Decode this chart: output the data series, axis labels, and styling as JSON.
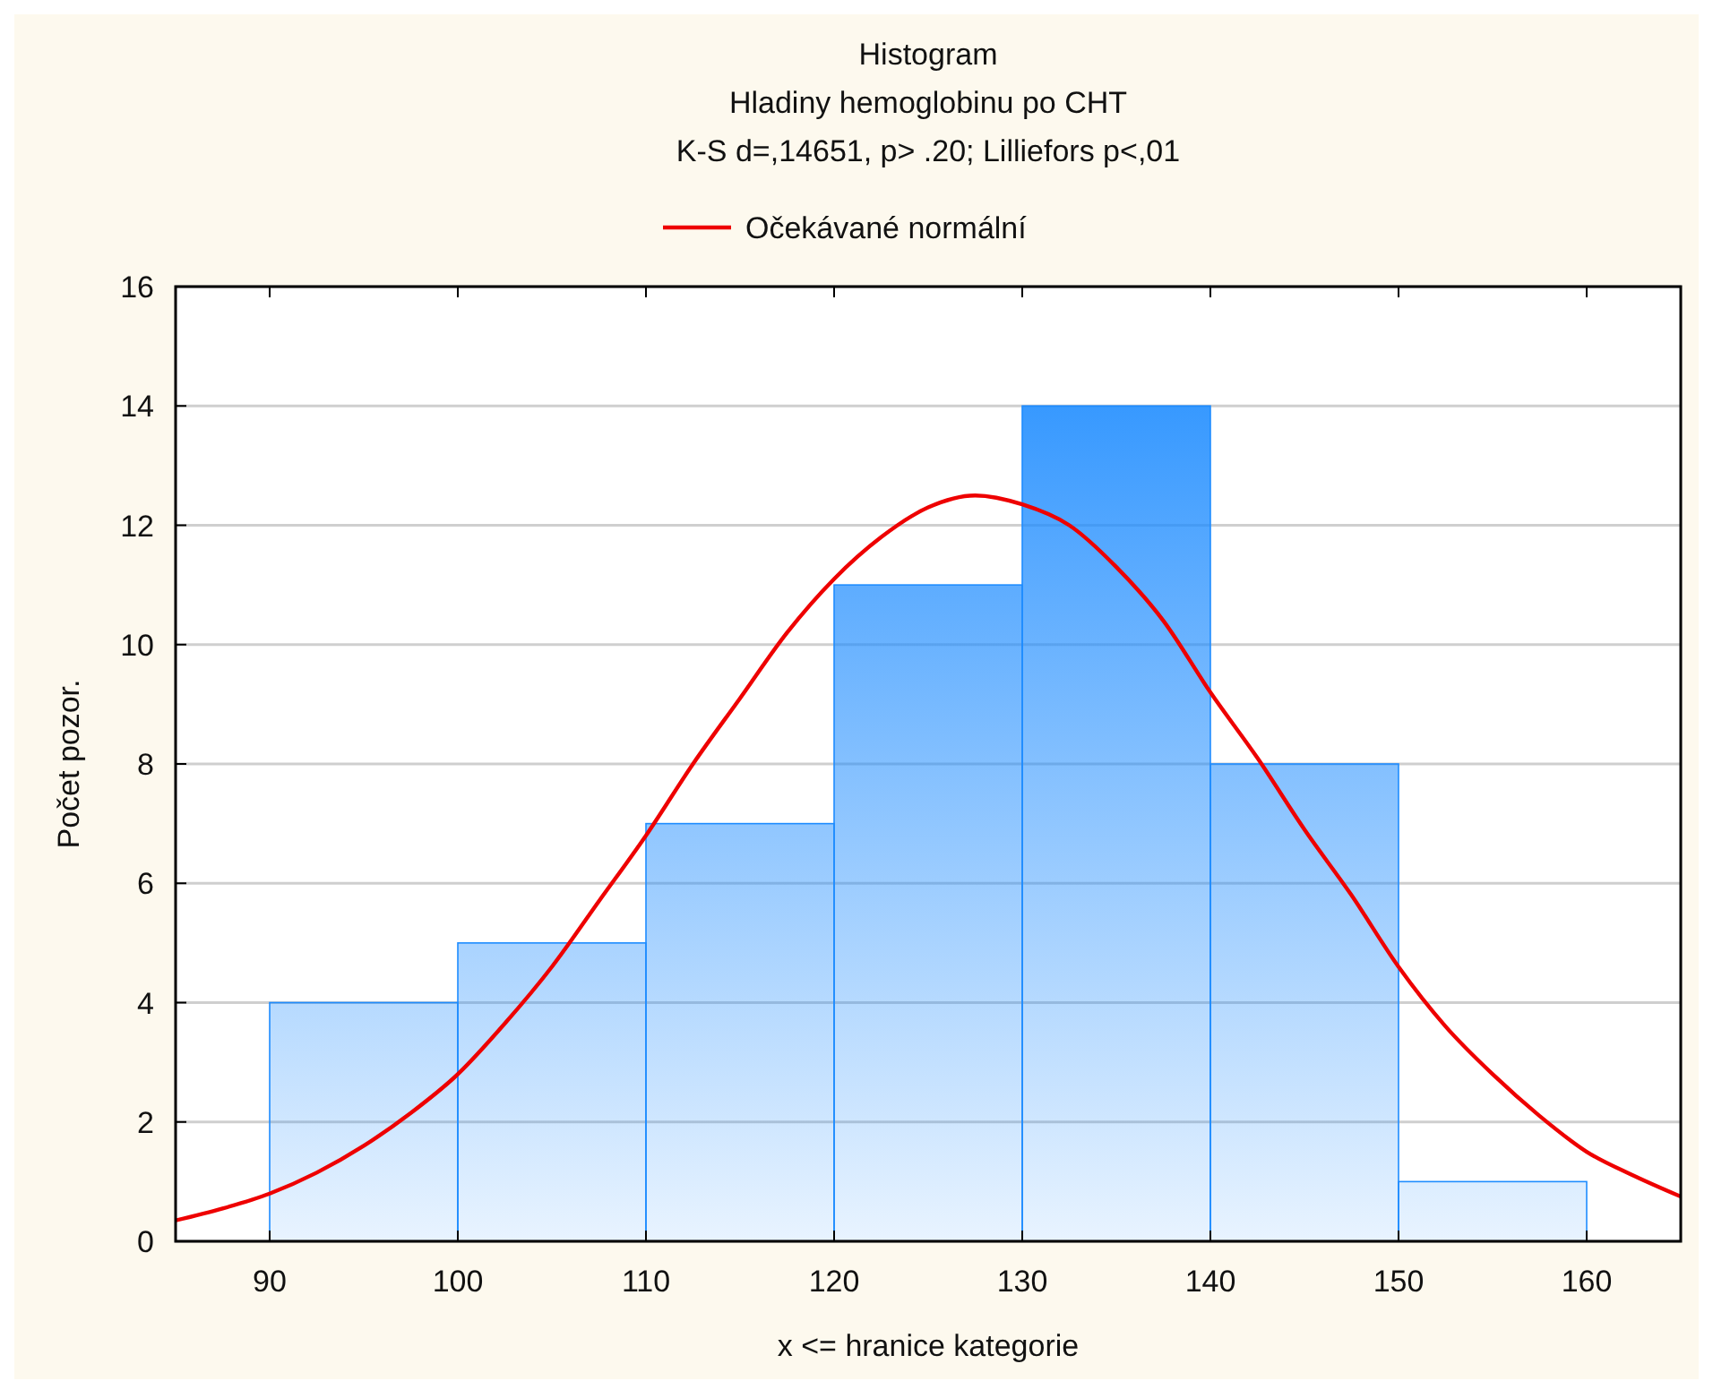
{
  "chart_data": {
    "type": "histogram",
    "title": "Histogram",
    "subtitle": "Hladiny hemoglobinu po CHT",
    "annotations": [
      "K-S d=,14651, p> .20; Lilliefors p<,01"
    ],
    "xlabel": "x <= hranice kategorie",
    "ylabel": "Počet pozor.",
    "bins": [
      90,
      100,
      110,
      120,
      130,
      140,
      150,
      160
    ],
    "values": [
      4,
      5,
      7,
      11,
      14,
      8,
      1
    ],
    "color": "#1e8cff",
    "series": [
      {
        "name": "Očekávané normální",
        "type": "line",
        "color": "#ee0000",
        "x": [
          85,
          87.5,
          90,
          92.5,
          95,
          97.5,
          100,
          102.5,
          105,
          107.5,
          110,
          112.5,
          115,
          117.5,
          120,
          122.5,
          125,
          127.5,
          130,
          132.5,
          135,
          137.5,
          140,
          142.5,
          145,
          147.5,
          150,
          152.5,
          155,
          157.5,
          160,
          162.5,
          165
        ],
        "values": [
          0.35,
          0.55,
          0.8,
          1.15,
          1.6,
          2.15,
          2.8,
          3.65,
          4.6,
          5.7,
          6.8,
          8.0,
          9.1,
          10.2,
          11.1,
          11.8,
          12.3,
          12.5,
          12.35,
          12.0,
          11.3,
          10.4,
          9.2,
          8.1,
          6.9,
          5.8,
          4.6,
          3.6,
          2.8,
          2.1,
          1.5,
          1.1,
          0.75
        ]
      }
    ],
    "xlim": [
      85,
      165
    ],
    "xticks": [
      90,
      100,
      110,
      120,
      130,
      140,
      150,
      160
    ],
    "ylim": [
      0,
      16
    ],
    "yticks": [
      0,
      2,
      4,
      6,
      8,
      10,
      12,
      14,
      16
    ],
    "grid": "y",
    "legend": "top"
  }
}
